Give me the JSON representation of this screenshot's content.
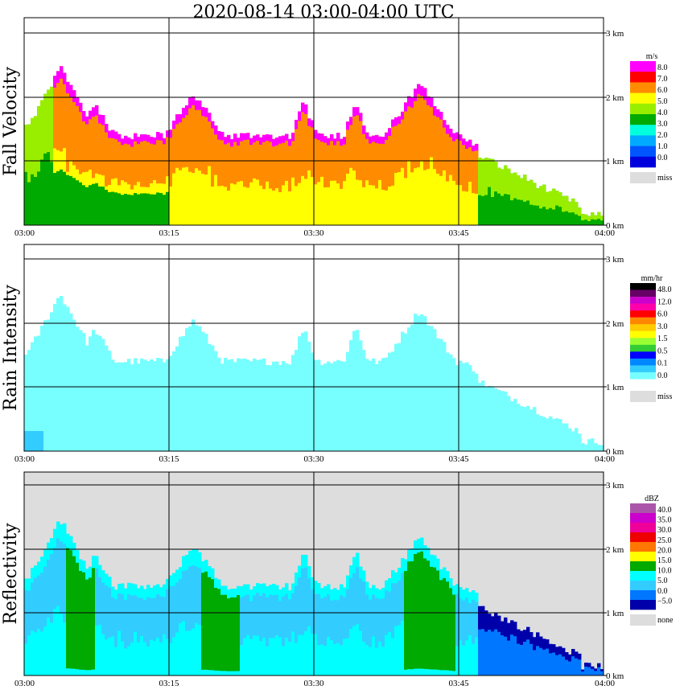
{
  "title": "2020-08-14   03:00-04:00 UTC",
  "colors": {
    "grid": "#000000",
    "miss": "#dddddd"
  },
  "chart_data": [
    {
      "type": "heatmap",
      "title": "",
      "ylabel": "Fall Velocity",
      "x_ticks": [
        "03:00",
        "03:15",
        "03:30",
        "03:45",
        "04:00"
      ],
      "y_ticks": [
        "0 km",
        "1 km",
        "2 km",
        "3 km"
      ],
      "xlim": [
        "03:00",
        "04:00"
      ],
      "ylim_km": [
        0,
        3
      ],
      "legend": {
        "unit": "m/s",
        "labels": [
          "8.0",
          "7.0",
          "6.0",
          "5.0",
          "4.0",
          "3.0",
          "2.0",
          "1.0",
          "0.0"
        ],
        "colors": [
          "#ff00ff",
          "#ff0000",
          "#ff8c00",
          "#ffff00",
          "#99ee00",
          "#00aa00",
          "#00ffdd",
          "#00aaff",
          "#0055ff",
          "#0000dd"
        ],
        "miss_label": "miss",
        "miss_color": "#dddddd"
      }
    },
    {
      "type": "heatmap",
      "title": "",
      "ylabel": "Rain Intensity",
      "x_ticks": [
        "03:00",
        "03:15",
        "03:30",
        "03:45",
        "04:00"
      ],
      "y_ticks": [
        "0 km",
        "1 km",
        "2 km",
        "3 km"
      ],
      "xlim": [
        "03:00",
        "04:00"
      ],
      "ylim_km": [
        0,
        3
      ],
      "legend": {
        "unit": "mm/hr",
        "labels": [
          "48.0",
          "12.0",
          "6.0",
          "3.0",
          "1.5",
          "0.5",
          "0.1",
          "0.0"
        ],
        "colors": [
          "#000000",
          "#660066",
          "#cc00cc",
          "#ff00aa",
          "#ff0000",
          "#ff8800",
          "#ffcc00",
          "#ffff00",
          "#99ff33",
          "#33cc33",
          "#0000ff",
          "#0088ff",
          "#33ccff",
          "#77ffff",
          "#ffffff"
        ],
        "miss_label": "miss",
        "miss_color": "#dddddd"
      }
    },
    {
      "type": "heatmap",
      "title": "",
      "ylabel": "Reflectivity",
      "x_ticks": [
        "03:00",
        "03:15",
        "03:30",
        "03:45",
        "04:00"
      ],
      "y_ticks": [
        "0 km",
        "1 km",
        "2 km",
        "3 km"
      ],
      "xlim": [
        "03:00",
        "04:00"
      ],
      "ylim_km": [
        0,
        3
      ],
      "legend": {
        "unit": "dBZ",
        "labels": [
          "40.0",
          "35.0",
          "30.0",
          "25.0",
          "20.0",
          "15.0",
          "10.0",
          "5.0",
          "0.0",
          "−5.0"
        ],
        "colors": [
          "#aa55aa",
          "#cc00cc",
          "#ee0099",
          "#ee0000",
          "#ff7700",
          "#ffff00",
          "#00aa00",
          "#00ffff",
          "#33ccff",
          "#0077ff",
          "#0000aa"
        ],
        "miss_label": "none",
        "miss_color": "#dddddd"
      }
    }
  ]
}
